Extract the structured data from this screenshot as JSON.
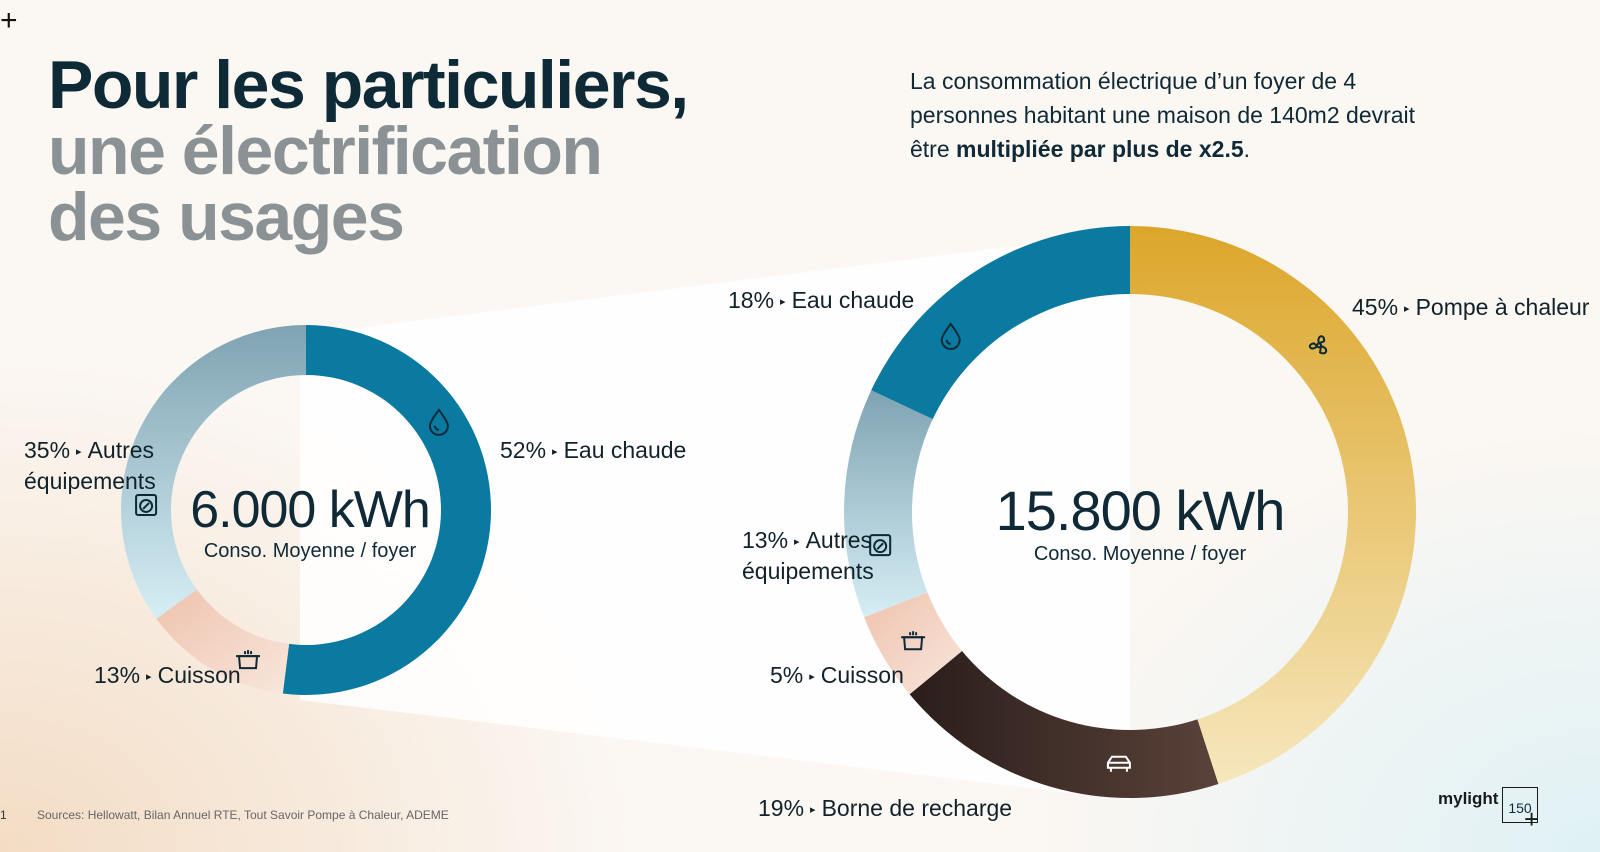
{
  "title": {
    "line1": "Pour les particuliers,",
    "line2": "une électrification",
    "line3": "des usages"
  },
  "intro": {
    "text_before": "La consommation électrique d’un foyer de 4 personnes habitant une maison de 140m2 devrait être ",
    "text_bold": "multipliée par plus de x2.5",
    "text_after": "."
  },
  "chart_data": [
    {
      "type": "pie",
      "variant": "donut",
      "center_value": "6.000 kWh",
      "center_label": "Conso. Moyenne / foyer",
      "slices": [
        {
          "label": "Eau chaude",
          "percent_label": "52%",
          "value": 52,
          "color": "#0a7aa0",
          "icon": "water-drop-icon"
        },
        {
          "label": "Cuisson",
          "percent_label": "13%",
          "value": 13,
          "color": "#f0cfc0",
          "icon": "cooking-pot-icon"
        },
        {
          "label": "Autres équipements",
          "label_line1": "Autres",
          "label_line2": "équipements",
          "percent_label": "35%",
          "value": 35,
          "color": "#8fb4c2",
          "icon": "washing-machine-icon"
        }
      ]
    },
    {
      "type": "pie",
      "variant": "donut",
      "center_value": "15.800 kWh",
      "center_label": "Conso. Moyenne / foyer",
      "slices": [
        {
          "label": "Pompe à chaleur",
          "percent_label": "45%",
          "value": 45,
          "color": "#e2b74a",
          "icon": "fan-icon"
        },
        {
          "label": "Borne de recharge",
          "percent_label": "19%",
          "value": 19,
          "color": "#3a2a26",
          "icon": "car-icon"
        },
        {
          "label": "Cuisson",
          "percent_label": "5%",
          "value": 5,
          "color": "#f0cfc0",
          "icon": "cooking-pot-icon"
        },
        {
          "label": "Autres équipements",
          "label_line1": "Autres",
          "label_line2": "équipements",
          "percent_label": "13%",
          "value": 13,
          "color": "#9cc3cf",
          "icon": "washing-machine-icon"
        },
        {
          "label": "Eau chaude",
          "percent_label": "18%",
          "value": 18,
          "color": "#0a7aa0",
          "icon": "water-drop-icon"
        }
      ]
    }
  ],
  "footer": {
    "page_number": "1",
    "sources": "Sources: Hellowatt, Bilan Annuel RTE, Tout Savoir Pompe à Chaleur, ADEME",
    "logo_text": "mylight",
    "logo_box": "150"
  }
}
